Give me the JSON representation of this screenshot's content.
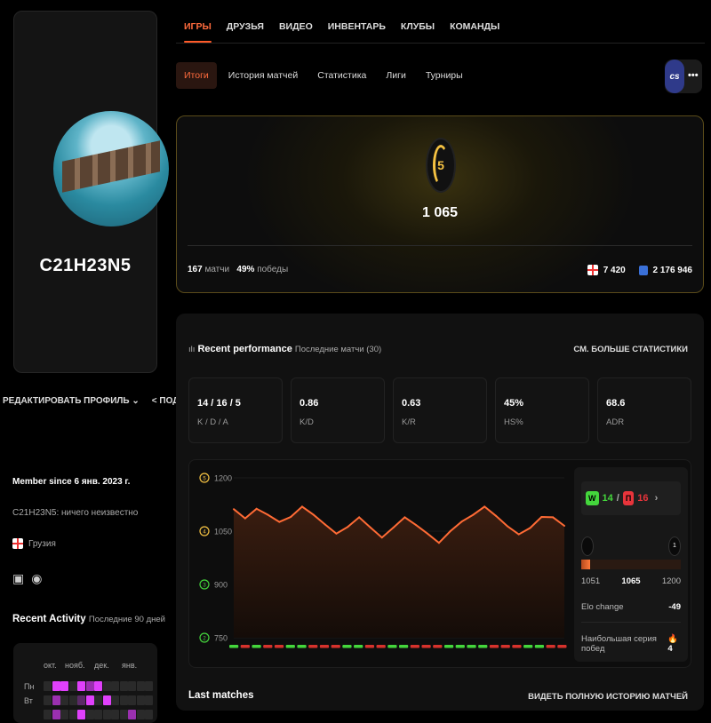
{
  "profile": {
    "nickname": "C21H23N5",
    "edit_label": "РЕДАКТИРОВАТЬ ПРОФИЛЬ",
    "share_label": "ПОДЕЛИТЬСЯ",
    "member_since": "Member since 6 янв. 2023 г.",
    "bio": "C21H23N5: ничего неизвестно",
    "country": "Грузия",
    "socials": [
      "twitch-icon",
      "steam-icon"
    ]
  },
  "activity": {
    "title": "Recent Activity",
    "subtitle": "Последние 90 дней",
    "months": [
      "окт.",
      "нояб.",
      "дек.",
      "янв."
    ],
    "days": [
      "Пн",
      "Вт"
    ],
    "levels": [
      [
        0,
        3,
        3,
        0,
        3,
        2,
        3,
        0,
        0,
        0,
        0,
        0,
        0
      ],
      [
        0,
        2,
        0,
        0,
        1,
        3,
        0,
        3,
        0,
        0,
        0,
        0,
        0
      ],
      [
        0,
        2,
        0,
        0,
        3,
        0,
        0,
        0,
        0,
        0,
        2,
        0,
        0
      ]
    ],
    "color": "#e040fb"
  },
  "nav": {
    "tabs": [
      "ИГРЫ",
      "ДРУЗЬЯ",
      "ВИДЕО",
      "ИНВЕНТАРЬ",
      "КЛУБЫ",
      "КОМАНДЫ"
    ],
    "active": 0
  },
  "subnav": {
    "tabs": [
      "Итоги",
      "История матчей",
      "Статистика",
      "Лиги",
      "Турниры"
    ],
    "active": 0,
    "game_logo": "cs",
    "more": "•••"
  },
  "elo_card": {
    "level": "5",
    "elo": "1 065",
    "matches": "167",
    "matches_label": "матчи",
    "winrate": "49%",
    "winrate_label": "победы",
    "country_rank": "7 420",
    "global_rank": "2 176 946"
  },
  "performance": {
    "title": "Recent performance",
    "subtitle": "Последние матчи (30)",
    "more": "СМ. БОЛЬШЕ СТАТИСТИКИ",
    "stats": [
      {
        "value": "14 / 16 / 5",
        "label": "K / D / A"
      },
      {
        "value": "0.86",
        "label": "K/D"
      },
      {
        "value": "0.63",
        "label": "K/R"
      },
      {
        "value": "45%",
        "label": "HS%"
      },
      {
        "value": "68.6",
        "label": "ADR"
      }
    ],
    "wins": "14",
    "losses": "16",
    "w_label": "W",
    "l_label": "П",
    "range_min": "1051",
    "range_current": "1065",
    "range_max": "1200",
    "progress": 0.09,
    "next_level": "1",
    "elo_change_label": "Elo change",
    "elo_change": "-49",
    "streak_label": "Наибольшая серия побед",
    "streak": "4"
  },
  "chart_data": {
    "type": "line",
    "y_ticks": [
      "1200",
      "1050",
      "900",
      "750"
    ],
    "y_level_badges": [
      "5",
      "4",
      "3",
      "2"
    ],
    "ylim": [
      750,
      1200
    ],
    "values": [
      1112,
      1086,
      1113,
      1096,
      1076,
      1090,
      1119,
      1096,
      1069,
      1043,
      1062,
      1089,
      1060,
      1032,
      1060,
      1089,
      1067,
      1043,
      1017,
      1050,
      1077,
      1096,
      1119,
      1093,
      1064,
      1041,
      1059,
      1090,
      1089,
      1065
    ],
    "results": [
      "W",
      "L",
      "W",
      "L",
      "L",
      "W",
      "W",
      "L",
      "L",
      "L",
      "W",
      "W",
      "L",
      "L",
      "W",
      "W",
      "L",
      "L",
      "L",
      "W",
      "W",
      "W",
      "W",
      "L",
      "L",
      "L",
      "W",
      "W",
      "L",
      "L"
    ],
    "line_color": "#ff6b35",
    "win_color": "#44d63c",
    "loss_color": "#d6322c"
  },
  "last_matches": {
    "title": "Last matches",
    "all": "ВИДЕТЬ ПОЛНУЮ ИСТОРИЮ МАТЧЕЙ"
  }
}
